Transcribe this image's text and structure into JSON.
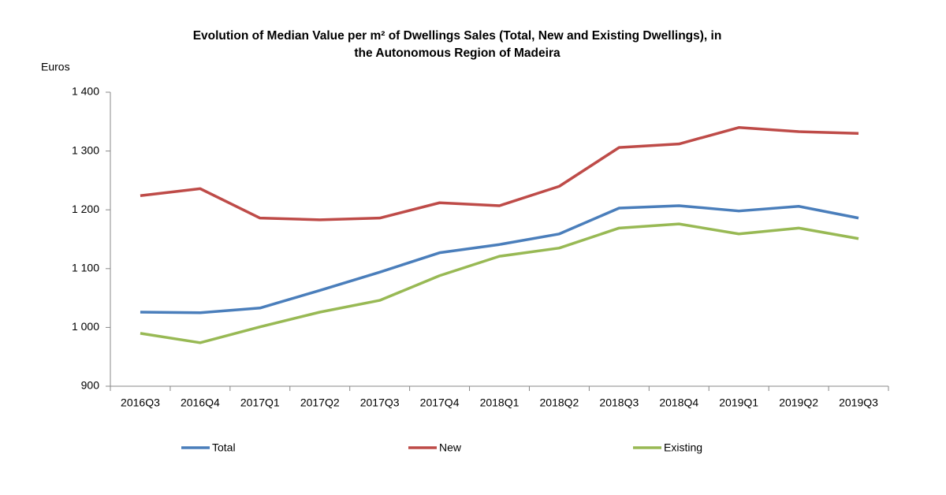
{
  "chart_data": {
    "type": "line",
    "title": [
      "Evolution of Median Value per m² of Dwellings Sales (Total, New and Existing Dwellings), in",
      "the Autonomous Region of Madeira"
    ],
    "y_label": "Euros",
    "categories": [
      "2016Q3",
      "2016Q4",
      "2017Q1",
      "2017Q2",
      "2017Q3",
      "2017Q4",
      "2018Q1",
      "2018Q2",
      "2018Q3",
      "2018Q4",
      "2019Q1",
      "2019Q2",
      "2019Q3"
    ],
    "series": [
      {
        "name": "Total",
        "color": "#4a7ebb",
        "values": [
          1026,
          1025,
          1033,
          1063,
          1094,
          1127,
          1141,
          1159,
          1203,
          1207,
          1198,
          1206,
          1186
        ]
      },
      {
        "name": "New",
        "color": "#be4b48",
        "values": [
          1224,
          1236,
          1186,
          1183,
          1186,
          1212,
          1207,
          1240,
          1306,
          1312,
          1340,
          1333,
          1330
        ]
      },
      {
        "name": "Existing",
        "color": "#98b954",
        "values": [
          990,
          974,
          1001,
          1026,
          1046,
          1088,
          1121,
          1135,
          1169,
          1176,
          1159,
          1169,
          1151
        ]
      }
    ],
    "ylim": [
      900,
      1400
    ],
    "yticks": [
      900,
      {
        "value": 1000,
        "label": "1 000"
      },
      {
        "value": 1100,
        "label": "1 100"
      },
      {
        "value": 1200,
        "label": "1 200"
      },
      {
        "value": 1300,
        "label": "1 300"
      },
      {
        "value": 1400,
        "label": "1 400"
      }
    ],
    "grid": false,
    "legend": "bottom"
  }
}
